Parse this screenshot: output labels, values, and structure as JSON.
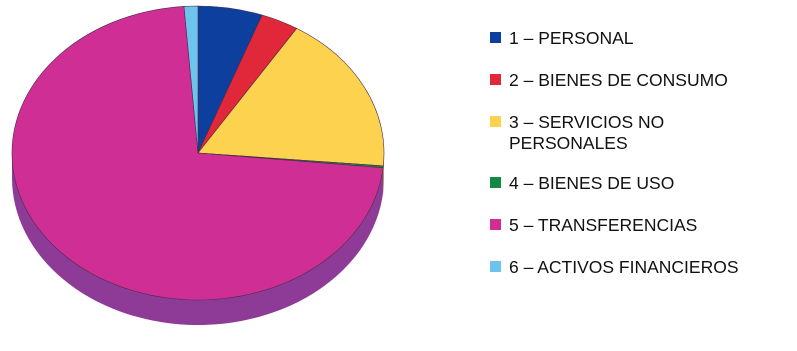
{
  "chart_data": {
    "type": "pie",
    "style": "3d",
    "categories": [
      "1 – PERSONAL",
      "2 – BIENES DE CONSUMO",
      "3 – SERVICIOS NO PERSONALES",
      "4 – BIENES DE USO",
      "5 – TRANSFERENCIAS",
      "6 – ACTIVOS FINANCIEROS"
    ],
    "values": [
      5.6,
      3.3,
      17.5,
      0.2,
      72.2,
      1.2
    ],
    "colors": [
      "#0d3f9e",
      "#e0283a",
      "#fdd24e",
      "#138a43",
      "#cf2f95",
      "#6ec3ec"
    ],
    "side_colors": [
      "#0a2e73",
      "#a51d2b",
      "#c9a436",
      "#0d6632",
      "#8e3b97",
      "#4b98be"
    ],
    "legend_position": "right",
    "title": ""
  },
  "legend": {
    "items": [
      {
        "label": "1 – PERSONAL",
        "color": "#0d3f9e"
      },
      {
        "label": "2 – BIENES DE CONSUMO",
        "color": "#e0283a"
      },
      {
        "label": "3 – SERVICIOS NO PERSONALES",
        "color": "#fdd24e"
      },
      {
        "label": "4 – BIENES DE USO",
        "color": "#138a43"
      },
      {
        "label": "5 – TRANSFERENCIAS",
        "color": "#cf2f95"
      },
      {
        "label": "6 – ACTIVOS FINANCIEROS",
        "color": "#6ec3ec"
      }
    ]
  }
}
